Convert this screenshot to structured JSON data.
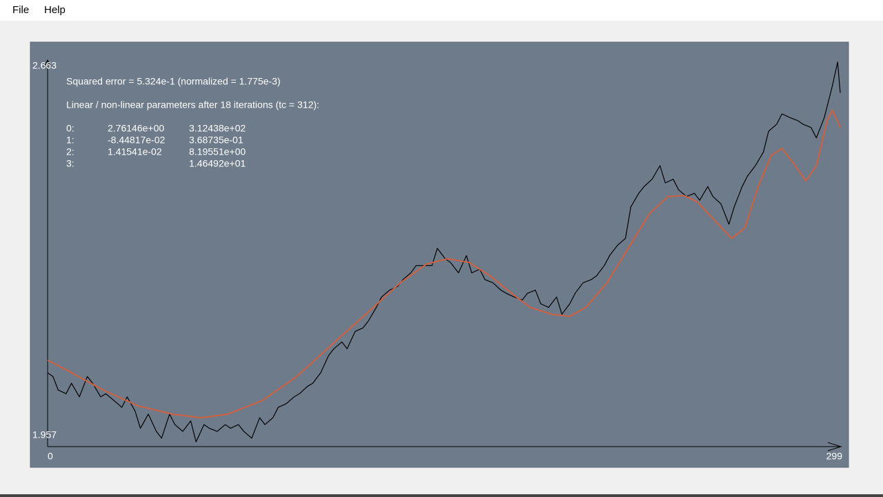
{
  "menu": [
    "File",
    "Help"
  ],
  "chart_data": {
    "type": "line",
    "annotations": [
      "Squared error = 5.324e-1 (normalized = 1.775e-3)",
      "Linear / non-linear parameters after 18 iterations (tc = 312):"
    ],
    "parameters": [
      {
        "label": "0:",
        "linear": "2.76146e+00",
        "nonlinear": "3.12438e+02"
      },
      {
        "label": "1:",
        "linear": "-8.44817e-02",
        "nonlinear": "3.68735e-01"
      },
      {
        "label": "2:",
        "linear": "1.41541e-02",
        "nonlinear": "8.19551e+00"
      },
      {
        "label": "3:",
        "nonlinear": "1.46492e+01"
      }
    ],
    "xlim": [
      0,
      299
    ],
    "ylim": [
      1.957,
      2.663
    ],
    "xticks": [
      0,
      299
    ],
    "yticks": [
      1.957,
      2.663
    ],
    "series": [
      {
        "color": "#000000",
        "x": [
          0,
          2,
          4,
          7,
          9,
          12,
          15,
          17,
          20,
          22,
          25,
          28,
          30,
          33,
          35,
          38,
          41,
          43,
          46,
          48,
          51,
          54,
          56,
          59,
          61,
          64,
          67,
          69,
          72,
          74,
          77,
          80,
          82,
          85,
          87,
          90,
          93,
          95,
          98,
          100,
          103,
          106,
          108,
          111,
          113,
          116,
          119,
          121,
          124,
          126,
          129,
          132,
          134,
          137,
          139,
          142,
          145,
          147,
          150,
          152,
          155,
          158,
          160,
          163,
          165,
          168,
          171,
          173,
          176,
          179,
          181,
          184,
          186,
          189,
          192,
          194,
          197,
          199,
          202,
          205,
          207,
          210,
          212,
          215,
          218,
          220,
          223,
          225,
          228,
          231,
          233,
          236,
          238,
          241,
          244,
          246,
          249,
          251,
          254,
          257,
          259,
          262,
          264,
          267,
          270,
          272,
          275,
          277,
          280,
          283,
          285,
          288,
          290,
          293,
          296,
          298,
          299
        ],
        "values": [
          2.077,
          2.07,
          2.044,
          2.037,
          2.057,
          2.031,
          2.07,
          2.057,
          2.031,
          2.037,
          2.024,
          2.011,
          2.031,
          2.004,
          1.971,
          1.998,
          1.965,
          1.952,
          1.998,
          1.978,
          1.965,
          1.985,
          1.945,
          1.978,
          1.971,
          1.965,
          1.978,
          1.971,
          1.978,
          1.965,
          1.952,
          1.991,
          1.978,
          1.991,
          2.011,
          2.018,
          2.031,
          2.037,
          2.051,
          2.057,
          2.077,
          2.11,
          2.123,
          2.136,
          2.123,
          2.156,
          2.163,
          2.176,
          2.202,
          2.222,
          2.235,
          2.242,
          2.255,
          2.268,
          2.282,
          2.282,
          2.282,
          2.315,
          2.295,
          2.288,
          2.268,
          2.301,
          2.268,
          2.275,
          2.255,
          2.249,
          2.235,
          2.229,
          2.222,
          2.216,
          2.229,
          2.235,
          2.209,
          2.202,
          2.222,
          2.189,
          2.209,
          2.229,
          2.249,
          2.255,
          2.262,
          2.282,
          2.301,
          2.321,
          2.334,
          2.394,
          2.42,
          2.433,
          2.447,
          2.473,
          2.44,
          2.447,
          2.427,
          2.414,
          2.42,
          2.407,
          2.433,
          2.414,
          2.4,
          2.361,
          2.394,
          2.433,
          2.453,
          2.473,
          2.499,
          2.539,
          2.552,
          2.572,
          2.565,
          2.559,
          2.552,
          2.546,
          2.526,
          2.565,
          2.625,
          2.671,
          2.612
        ]
      },
      {
        "color": "#d0603f",
        "x": [
          0,
          8,
          21,
          34,
          47,
          58,
          68,
          81,
          94,
          107,
          120,
          133,
          143,
          151,
          159,
          167,
          175,
          182,
          190,
          197,
          203,
          211,
          219,
          227,
          234,
          240,
          245,
          253,
          258,
          263,
          268,
          273,
          277,
          281,
          286,
          290,
          294,
          296,
          299
        ],
        "values": [
          2.101,
          2.08,
          2.044,
          2.014,
          1.998,
          1.991,
          1.998,
          2.024,
          2.07,
          2.13,
          2.189,
          2.249,
          2.285,
          2.295,
          2.288,
          2.262,
          2.229,
          2.202,
          2.189,
          2.185,
          2.202,
          2.249,
          2.315,
          2.381,
          2.414,
          2.416,
          2.404,
          2.361,
          2.334,
          2.354,
          2.433,
          2.493,
          2.506,
          2.48,
          2.444,
          2.473,
          2.559,
          2.579,
          2.546
        ]
      }
    ]
  }
}
